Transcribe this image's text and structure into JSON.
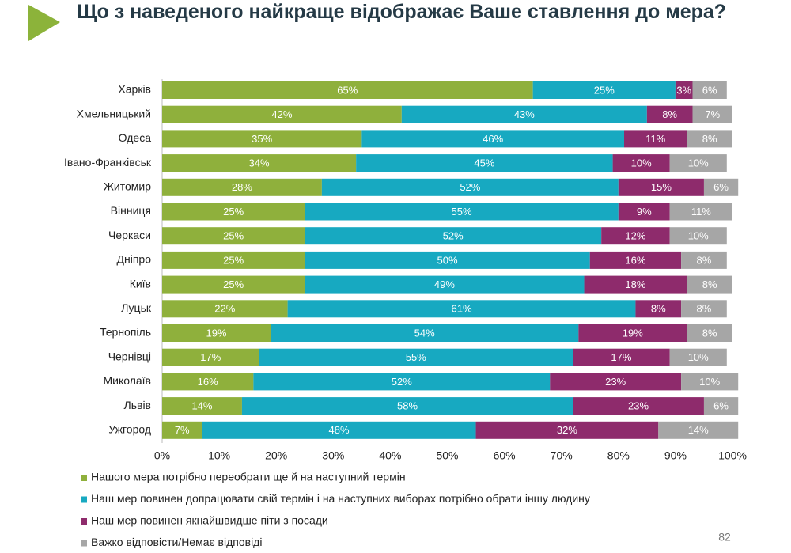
{
  "chart_data": {
    "type": "stacked-bar-horizontal",
    "title": "Що з наведеного найкраще відображає Ваше ставлення до мера?",
    "categories": [
      "Харків",
      "Хмельницький",
      "Одеса",
      "Івано-Франківськ",
      "Житомир",
      "Вінниця",
      "Черкаси",
      "Дніпро",
      "Київ",
      "Луцьк",
      "Тернопіль",
      "Чернівці",
      "Миколаїв",
      "Львів",
      "Ужгород"
    ],
    "series": [
      {
        "name": "Нашого мера потрібно переобрати ще й на наступний термін",
        "color": "#8fb03c",
        "values": [
          65,
          42,
          35,
          34,
          28,
          25,
          25,
          25,
          25,
          22,
          19,
          17,
          16,
          14,
          7
        ],
        "value_labels": [
          "65%",
          "42%",
          "35%",
          "34%",
          "28%",
          "25%",
          "25%",
          "25%",
          "25%",
          "22%",
          "19%",
          "17%",
          "16%",
          "14%",
          "7%"
        ]
      },
      {
        "name": "Наш мер повинен допрацювати свій термін і на наступних виборах потрібно обрати іншу людину",
        "color": "#17a9c1",
        "values": [
          25,
          43,
          46,
          45,
          52,
          55,
          52,
          50,
          49,
          61,
          54,
          55,
          52,
          58,
          48
        ],
        "value_labels": [
          "25%",
          "43%",
          "46%",
          "45%",
          "52%",
          "55%",
          "52%",
          "50%",
          "49%",
          "61%",
          "54%",
          "55%",
          "52%",
          "58%",
          "48%"
        ]
      },
      {
        "name": "Наш мер повинен якнайшвидше піти з посади",
        "color": "#8e2b6c",
        "values": [
          3,
          8,
          11,
          10,
          15,
          9,
          12,
          16,
          18,
          8,
          19,
          17,
          23,
          23,
          32
        ],
        "value_labels": [
          "3%",
          "8%",
          "11%",
          "10%",
          "15%",
          "9%",
          "12%",
          "16%",
          "18%",
          "8%",
          "19%",
          "17%",
          "23%",
          "23%",
          "32%"
        ]
      },
      {
        "name": "Важко відповісти/Немає відповіді",
        "color": "#a6a6a6",
        "values": [
          6,
          7,
          8,
          10,
          6,
          11,
          10,
          8,
          8,
          8,
          8,
          10,
          10,
          6,
          14
        ],
        "value_labels": [
          "6%",
          "7%",
          "8%",
          "10%",
          "6%",
          "11%",
          "10%",
          "8%",
          "8%",
          "8%",
          "8%",
          "10%",
          "10%",
          "6%",
          "14%"
        ]
      }
    ],
    "xlim": [
      0,
      100
    ],
    "xticks": [
      {
        "value": 0,
        "label": "0%"
      },
      {
        "value": 10,
        "label": "10%"
      },
      {
        "value": 20,
        "label": "20%"
      },
      {
        "value": 30,
        "label": "30%"
      },
      {
        "value": 40,
        "label": "40%"
      },
      {
        "value": 50,
        "label": "50%"
      },
      {
        "value": 60,
        "label": "60%"
      },
      {
        "value": 70,
        "label": "70%"
      },
      {
        "value": 80,
        "label": "80%"
      },
      {
        "value": 90,
        "label": "90%"
      },
      {
        "value": 100,
        "label": "100%"
      }
    ],
    "legend": "bottom-left",
    "page_number": "82"
  }
}
